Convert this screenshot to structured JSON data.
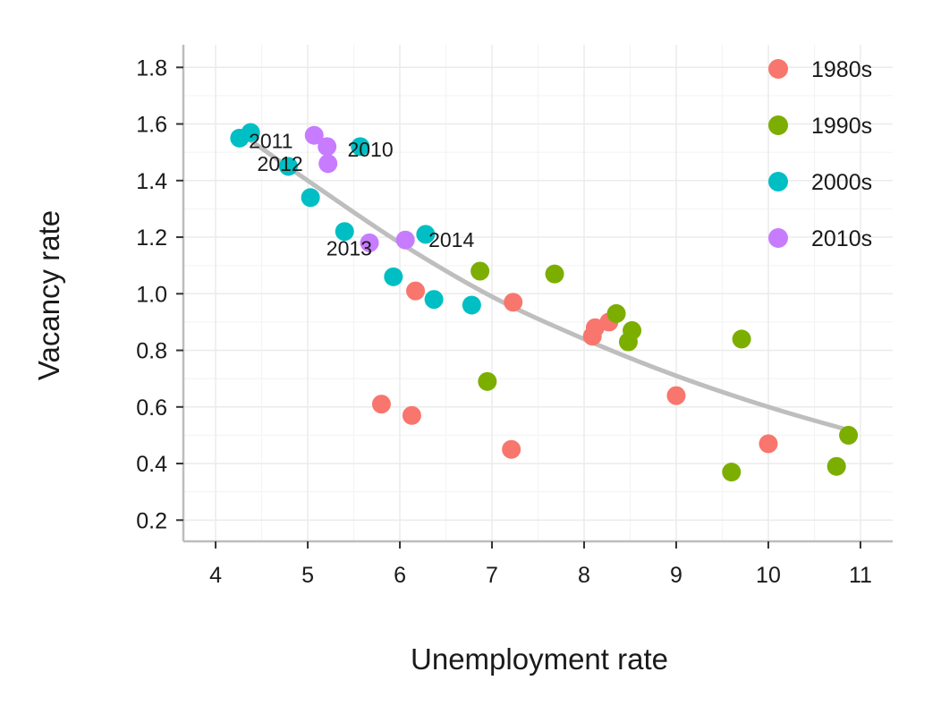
{
  "chart_data": {
    "type": "scatter",
    "title": "",
    "xlabel": "Unemployment rate",
    "ylabel": "Vacancy rate",
    "xlim": [
      3.65,
      11.35
    ],
    "ylim": [
      0.125,
      1.88
    ],
    "xticks": [
      4,
      5,
      6,
      7,
      8,
      9,
      10,
      11
    ],
    "yticks": [
      0.2,
      0.4,
      0.6,
      0.8,
      1.0,
      1.2,
      1.4,
      1.6,
      1.8
    ],
    "ytick_labels": [
      "0.2",
      "0.4",
      "0.6",
      "0.8",
      "1.0",
      "1.2",
      "1.4",
      "1.6",
      "1.8"
    ],
    "grid": true,
    "legend_position": "top-right",
    "series": [
      {
        "name": "1980s",
        "color": "#F8766D",
        "points": [
          {
            "x": 5.8,
            "y": 0.61
          },
          {
            "x": 6.13,
            "y": 0.57
          },
          {
            "x": 6.17,
            "y": 1.01
          },
          {
            "x": 7.21,
            "y": 0.45
          },
          {
            "x": 7.23,
            "y": 0.97
          },
          {
            "x": 8.09,
            "y": 0.85
          },
          {
            "x": 8.12,
            "y": 0.88
          },
          {
            "x": 8.27,
            "y": 0.9
          },
          {
            "x": 9.0,
            "y": 0.64
          },
          {
            "x": 10.0,
            "y": 0.47
          }
        ]
      },
      {
        "name": "1990s",
        "color": "#7CAE00",
        "points": [
          {
            "x": 6.87,
            "y": 1.08
          },
          {
            "x": 6.95,
            "y": 0.69
          },
          {
            "x": 7.68,
            "y": 1.07
          },
          {
            "x": 8.35,
            "y": 0.93
          },
          {
            "x": 8.48,
            "y": 0.83
          },
          {
            "x": 8.52,
            "y": 0.87
          },
          {
            "x": 9.6,
            "y": 0.37
          },
          {
            "x": 9.71,
            "y": 0.84
          },
          {
            "x": 10.74,
            "y": 0.39
          },
          {
            "x": 10.87,
            "y": 0.5
          }
        ]
      },
      {
        "name": "2000s",
        "color": "#00BFC4",
        "points": [
          {
            "x": 4.26,
            "y": 1.55
          },
          {
            "x": 4.38,
            "y": 1.57
          },
          {
            "x": 4.79,
            "y": 1.45
          },
          {
            "x": 5.03,
            "y": 1.34
          },
          {
            "x": 5.4,
            "y": 1.22
          },
          {
            "x": 5.57,
            "y": 1.52
          },
          {
            "x": 5.93,
            "y": 1.06
          },
          {
            "x": 6.28,
            "y": 1.21
          },
          {
            "x": 6.37,
            "y": 0.98
          },
          {
            "x": 6.78,
            "y": 0.96
          }
        ]
      },
      {
        "name": "2010s",
        "color": "#C77CFF",
        "points": [
          {
            "x": 5.07,
            "y": 1.56
          },
          {
            "x": 5.21,
            "y": 1.52
          },
          {
            "x": 5.22,
            "y": 1.46
          },
          {
            "x": 5.67,
            "y": 1.18
          },
          {
            "x": 6.06,
            "y": 1.19
          }
        ]
      }
    ],
    "annotations": [
      {
        "label": "2011",
        "x": 4.6,
        "y": 1.54
      },
      {
        "label": "2012",
        "x": 4.7,
        "y": 1.46
      },
      {
        "label": "2010",
        "x": 5.68,
        "y": 1.51
      },
      {
        "label": "2013",
        "x": 5.45,
        "y": 1.16
      },
      {
        "label": "2014",
        "x": 6.56,
        "y": 1.19
      }
    ],
    "trend": {
      "color": "#BEBEBE",
      "points": [
        {
          "x": 4.3,
          "y": 1.56
        },
        {
          "x": 5.0,
          "y": 1.4
        },
        {
          "x": 6.0,
          "y": 1.18
        },
        {
          "x": 7.0,
          "y": 0.99
        },
        {
          "x": 8.0,
          "y": 0.84
        },
        {
          "x": 9.0,
          "y": 0.71
        },
        {
          "x": 10.0,
          "y": 0.6
        },
        {
          "x": 10.85,
          "y": 0.52
        }
      ]
    }
  }
}
